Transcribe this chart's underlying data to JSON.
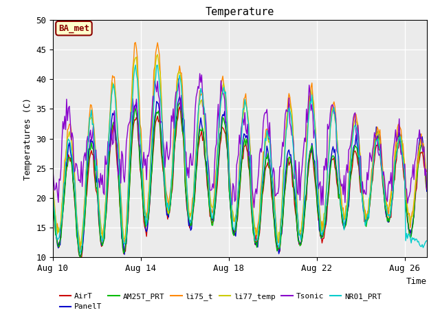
{
  "title": "Temperature",
  "xlabel": "Time",
  "ylabel": "Temperatures (C)",
  "ylim": [
    10,
    50
  ],
  "xlim": [
    0,
    17
  ],
  "annotation": "BA_met",
  "plot_bg_color": "#ebebeb",
  "series": [
    {
      "name": "AirT",
      "color": "#cc0000"
    },
    {
      "name": "PanelT",
      "color": "#0000cc"
    },
    {
      "name": "AM25T_PRT",
      "color": "#00bb00"
    },
    {
      "name": "li75_t",
      "color": "#ff8800"
    },
    {
      "name": "li77_temp",
      "color": "#cccc00"
    },
    {
      "name": "Tsonic",
      "color": "#8800cc"
    },
    {
      "name": "NR01_PRT",
      "color": "#00cccc"
    }
  ],
  "xtick_labels": [
    "Aug 10",
    "Aug 14",
    "Aug 18",
    "Aug 22",
    "Aug 26"
  ],
  "xtick_positions": [
    0,
    4,
    8,
    12,
    16
  ],
  "ytick_positions": [
    10,
    15,
    20,
    25,
    30,
    35,
    40,
    45,
    50
  ],
  "grid_color": "#ffffff",
  "font_family": "monospace",
  "legend_row1": [
    "AirT",
    "PanelT",
    "AM25T_PRT",
    "li75_t",
    "li77_temp",
    "Tsonic"
  ],
  "legend_row2": [
    "NR01_PRT"
  ]
}
